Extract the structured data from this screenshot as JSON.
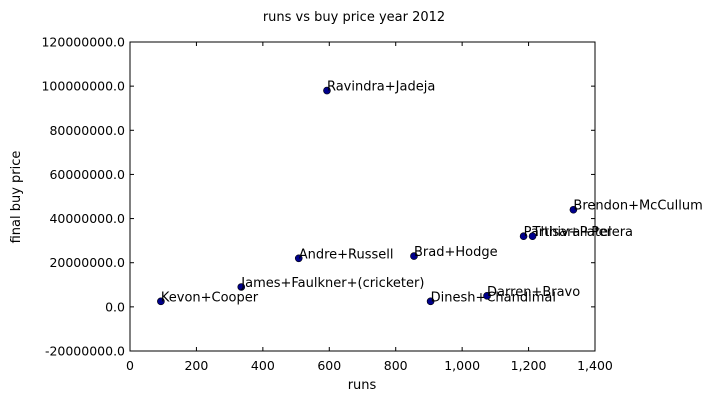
{
  "chart_data": {
    "type": "scatter",
    "title": "runs vs buy price year 2012",
    "xlabel": "runs",
    "ylabel": "final buy price",
    "xlim": [
      0,
      1400
    ],
    "ylim": [
      -20000000,
      120000000
    ],
    "xticks": [
      0,
      200,
      400,
      600,
      800,
      1000,
      1200,
      1400
    ],
    "xtick_labels": [
      "0",
      "200",
      "400",
      "600",
      "800",
      "1,000",
      "1,200",
      "1,400"
    ],
    "yticks": [
      -20000000,
      0,
      20000000,
      40000000,
      60000000,
      80000000,
      100000000,
      120000000
    ],
    "ytick_labels": [
      "-20000000.0",
      "0.0",
      "20000000.0",
      "40000000.0",
      "60000000.0",
      "80000000.0",
      "100000000.0",
      "120000000.0"
    ],
    "grid": false,
    "marker_color": "#00008b",
    "points": [
      {
        "label": "Kevon+Cooper",
        "x": 93,
        "y": 2500000
      },
      {
        "label": "James+Faulkner+(cricketer)",
        "x": 335,
        "y": 9000000
      },
      {
        "label": "Andre+Russell",
        "x": 508,
        "y": 22000000
      },
      {
        "label": "Ravindra+Jadeja",
        "x": 593,
        "y": 98000000
      },
      {
        "label": "Brad+Hodge",
        "x": 855,
        "y": 23000000
      },
      {
        "label": "Dinesh+Chandimal",
        "x": 905,
        "y": 2500000
      },
      {
        "label": "Darren+Bravo",
        "x": 1075,
        "y": 5000000
      },
      {
        "label": "Parthiv+Patel",
        "x": 1185,
        "y": 32000000
      },
      {
        "label": "Thisara+Perera",
        "x": 1212,
        "y": 32000000
      },
      {
        "label": "Brendon+McCullum",
        "x": 1335,
        "y": 44000000
      }
    ]
  }
}
